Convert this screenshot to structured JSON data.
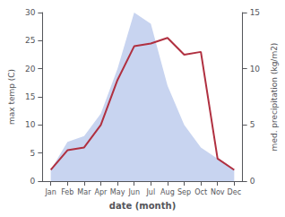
{
  "chart_data": {
    "type": "line",
    "xlabel": "date (month)",
    "ylabel": "max temp (C)",
    "y2label": "med. precipitation (kg/m2)",
    "categories": [
      "Jan",
      "Feb",
      "Mar",
      "Apr",
      "May",
      "Jun",
      "Jul",
      "Aug",
      "Sep",
      "Oct",
      "Nov",
      "Dec"
    ],
    "series": [
      {
        "type": "area",
        "axis": "y2",
        "color": "#c8d4f0",
        "values": [
          1.0,
          3.5,
          4.0,
          6.0,
          10.0,
          15.0,
          14.0,
          8.5,
          5.0,
          3.0,
          2.0,
          1.0
        ]
      },
      {
        "type": "line",
        "color": "#b03040",
        "values": [
          2.0,
          5.5,
          6.0,
          10.0,
          18.0,
          24.0,
          24.5,
          25.5,
          22.5,
          23.0,
          4.0,
          2.0
        ]
      }
    ],
    "ylim": [
      0,
      30
    ],
    "yticks": [
      0,
      5,
      10,
      15,
      20,
      25,
      30
    ],
    "y2lim": [
      0,
      15
    ],
    "y2ticks": [
      0,
      5,
      10,
      15
    ],
    "grid": false
  }
}
